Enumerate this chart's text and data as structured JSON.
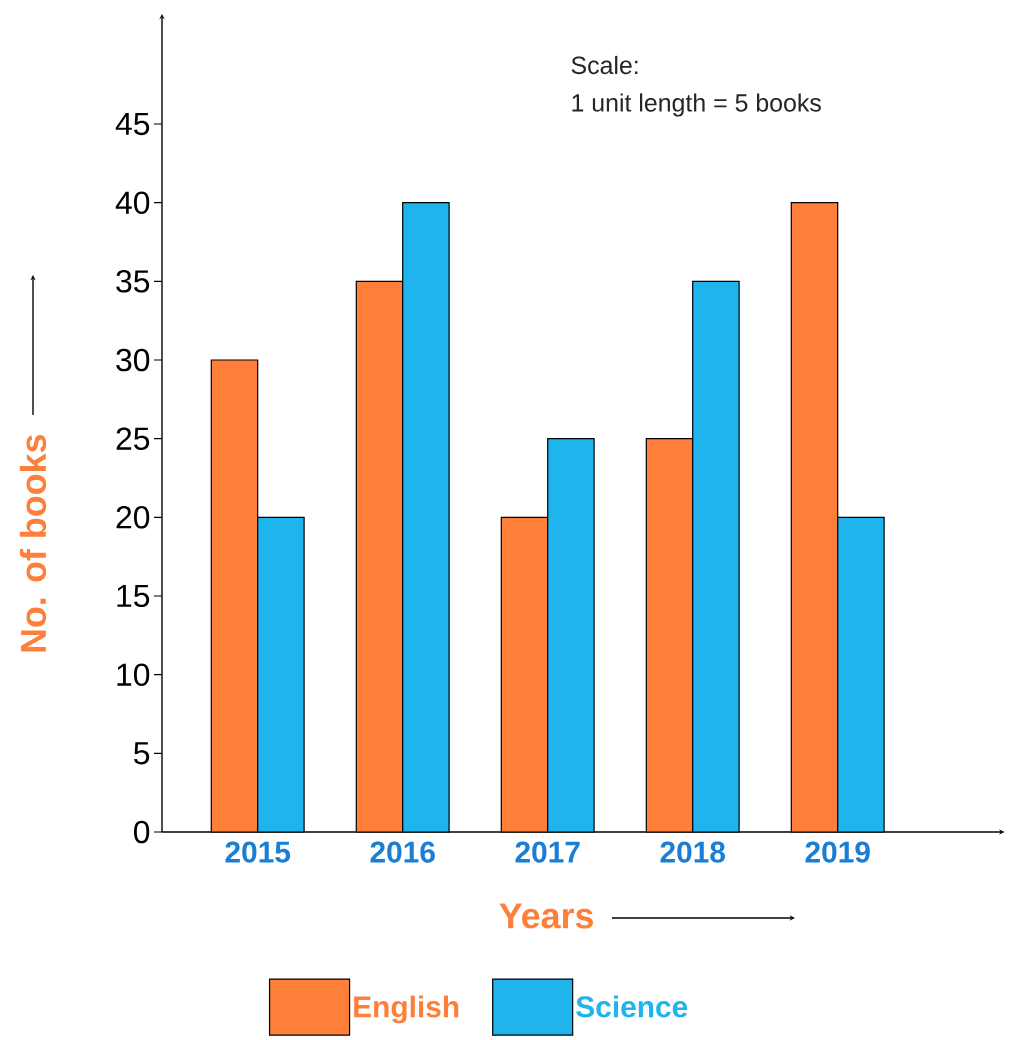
{
  "chart_data": {
    "type": "bar",
    "categories": [
      "2015",
      "2016",
      "2017",
      "2018",
      "2019"
    ],
    "series": [
      {
        "name": "English",
        "color": "#ff7f3a",
        "values": [
          30,
          35,
          20,
          25,
          40
        ]
      },
      {
        "name": "Science",
        "color": "#1fb4ec",
        "values": [
          20,
          40,
          25,
          35,
          20
        ]
      }
    ],
    "xlabel": "Years",
    "ylabel": "No. of books",
    "annotations": [
      "Scale:",
      "1 unit length = 5 books"
    ],
    "ylim": [
      0,
      52
    ],
    "yticks": [
      0,
      5,
      10,
      15,
      20,
      25,
      30,
      35,
      40,
      45
    ],
    "grid": false,
    "legend": "bottom"
  }
}
